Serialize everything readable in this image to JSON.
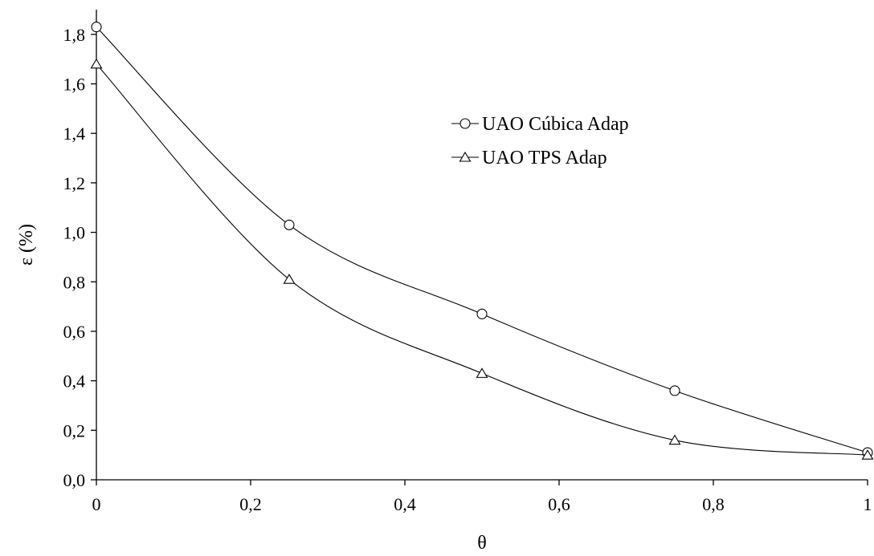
{
  "chart_data": {
    "type": "line",
    "title": "",
    "xlabel": "θ",
    "ylabel": "ε (%)",
    "xlim": [
      0,
      1
    ],
    "ylim": [
      0,
      1.9
    ],
    "x_ticks": [
      "0",
      "0,2",
      "0,4",
      "0,6",
      "0,8",
      "1"
    ],
    "y_ticks": [
      "0,0",
      "0,2",
      "0,4",
      "0,6",
      "0,8",
      "1,0",
      "1,2",
      "1,4",
      "1,6",
      "1,8"
    ],
    "grid": false,
    "legend_position": "upper-right-inside",
    "series": [
      {
        "name": "UAO Cúbica Adap",
        "marker": "circle",
        "x": [
          0,
          0.25,
          0.5,
          0.75,
          1
        ],
        "y": [
          1.83,
          1.03,
          0.67,
          0.36,
          0.11
        ]
      },
      {
        "name": "UAO TPS Adap",
        "marker": "triangle",
        "x": [
          0,
          0.25,
          0.5,
          0.75,
          1
        ],
        "y": [
          1.68,
          0.81,
          0.43,
          0.16,
          0.1
        ]
      }
    ]
  }
}
